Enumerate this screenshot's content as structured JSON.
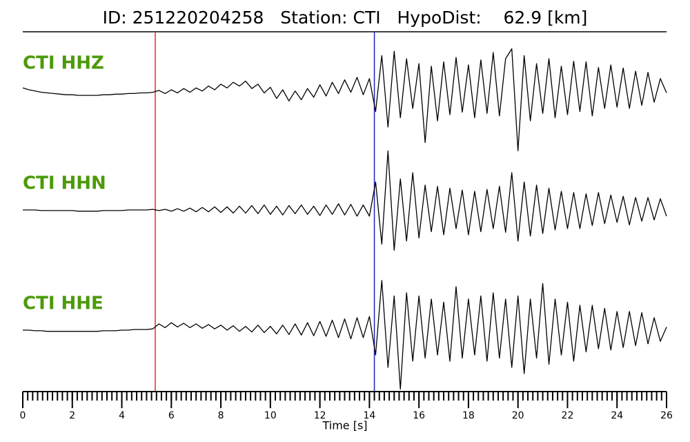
{
  "chart_data": {
    "type": "waveform",
    "title": "ID: 251220204258   Station: CTI   HypoDist:    62.9 [km]",
    "x_label": "Time [s]",
    "xlim": [
      0,
      26
    ],
    "xticks": [
      0,
      2,
      4,
      6,
      8,
      10,
      12,
      14,
      16,
      18,
      20,
      22,
      24,
      26
    ],
    "minor_tick_step": 0.2,
    "ylim": [
      -1,
      1
    ],
    "label_color": "#4c9a0a",
    "picks": [
      {
        "x": 5.35,
        "color": "#e8262a"
      },
      {
        "x": 14.2,
        "color": "#2020c0"
      }
    ],
    "x": [
      0,
      0.25,
      0.5,
      0.75,
      1,
      1.25,
      1.5,
      1.75,
      2,
      2.25,
      2.5,
      2.75,
      3,
      3.25,
      3.5,
      3.75,
      4,
      4.25,
      4.5,
      4.75,
      5,
      5.25,
      5.5,
      5.75,
      6,
      6.25,
      6.5,
      6.75,
      7,
      7.25,
      7.5,
      7.75,
      8,
      8.25,
      8.5,
      8.75,
      9,
      9.25,
      9.5,
      9.75,
      10,
      10.25,
      10.5,
      10.75,
      11,
      11.25,
      11.5,
      11.75,
      12,
      12.25,
      12.5,
      12.75,
      13,
      13.25,
      13.5,
      13.75,
      14,
      14.25,
      14.5,
      14.75,
      15,
      15.25,
      15.5,
      15.75,
      16,
      16.25,
      16.5,
      16.75,
      17,
      17.25,
      17.5,
      17.75,
      18,
      18.25,
      18.5,
      18.75,
      19,
      19.25,
      19.5,
      19.75,
      20,
      20.25,
      20.5,
      20.75,
      21,
      21.25,
      21.5,
      21.75,
      22,
      22.25,
      22.5,
      22.75,
      23,
      23.25,
      23.5,
      23.75,
      24,
      24.25,
      24.5,
      24.75,
      25,
      25.25,
      25.5,
      25.75,
      26
    ],
    "series": [
      {
        "name": "CTI HHZ",
        "color": "#000000",
        "values": [
          0.03,
          0.0,
          -0.02,
          -0.04,
          -0.05,
          -0.06,
          -0.07,
          -0.08,
          -0.08,
          -0.09,
          -0.09,
          -0.09,
          -0.09,
          -0.08,
          -0.08,
          -0.07,
          -0.07,
          -0.06,
          -0.06,
          -0.05,
          -0.05,
          -0.04,
          -0.01,
          -0.06,
          0.0,
          -0.05,
          0.02,
          -0.04,
          0.03,
          -0.02,
          0.06,
          0.0,
          0.09,
          0.03,
          0.12,
          0.06,
          0.14,
          0.02,
          0.09,
          -0.05,
          0.04,
          -0.14,
          0.0,
          -0.18,
          -0.02,
          -0.16,
          0.02,
          -0.12,
          0.08,
          -0.1,
          0.12,
          -0.06,
          0.16,
          -0.04,
          0.2,
          -0.08,
          0.18,
          -0.35,
          0.55,
          -0.6,
          0.62,
          -0.45,
          0.5,
          -0.3,
          0.42,
          -0.85,
          0.38,
          -0.5,
          0.45,
          -0.4,
          0.52,
          -0.36,
          0.4,
          -0.45,
          0.48,
          -0.38,
          0.6,
          -0.42,
          0.5,
          0.66,
          -0.98,
          0.55,
          -0.5,
          0.42,
          -0.38,
          0.5,
          -0.45,
          0.38,
          -0.4,
          0.46,
          -0.35,
          0.45,
          -0.42,
          0.36,
          -0.3,
          0.4,
          -0.28,
          0.35,
          -0.3,
          0.3,
          -0.25,
          0.28,
          -0.2,
          0.18,
          -0.05
        ]
      },
      {
        "name": "CTI HHN",
        "color": "#000000",
        "values": [
          0.0,
          0.0,
          0.0,
          -0.01,
          -0.01,
          -0.01,
          -0.01,
          -0.01,
          -0.01,
          -0.02,
          -0.02,
          -0.02,
          -0.02,
          -0.01,
          -0.01,
          -0.01,
          -0.01,
          0.0,
          0.0,
          0.0,
          0.0,
          0.01,
          -0.01,
          0.01,
          -0.02,
          0.02,
          -0.02,
          0.03,
          -0.03,
          0.04,
          -0.03,
          0.05,
          -0.04,
          0.05,
          -0.05,
          0.06,
          -0.05,
          0.07,
          -0.06,
          0.08,
          -0.07,
          0.06,
          -0.08,
          0.07,
          -0.06,
          0.08,
          -0.07,
          0.06,
          -0.09,
          0.08,
          -0.07,
          0.1,
          -0.08,
          0.09,
          -0.1,
          0.08,
          -0.1,
          0.45,
          -0.55,
          0.95,
          -0.65,
          0.5,
          -0.5,
          0.6,
          -0.45,
          0.4,
          -0.35,
          0.38,
          -0.4,
          0.35,
          -0.3,
          0.32,
          -0.4,
          0.3,
          -0.35,
          0.33,
          -0.3,
          0.38,
          -0.36,
          0.6,
          -0.5,
          0.45,
          -0.42,
          0.4,
          -0.38,
          0.35,
          -0.32,
          0.3,
          -0.3,
          0.28,
          -0.3,
          0.26,
          -0.25,
          0.28,
          -0.22,
          0.24,
          -0.2,
          0.22,
          -0.24,
          0.2,
          -0.18,
          0.2,
          -0.16,
          0.18,
          -0.1
        ]
      },
      {
        "name": "CTI HHE",
        "color": "#000000",
        "values": [
          0.0,
          0.0,
          -0.01,
          -0.01,
          -0.02,
          -0.02,
          -0.02,
          -0.02,
          -0.02,
          -0.02,
          -0.02,
          -0.02,
          -0.02,
          -0.01,
          -0.01,
          -0.01,
          0.0,
          0.0,
          0.01,
          0.01,
          0.01,
          0.02,
          0.1,
          0.04,
          0.12,
          0.05,
          0.11,
          0.04,
          0.1,
          0.03,
          0.09,
          0.02,
          0.08,
          0.0,
          0.07,
          -0.02,
          0.06,
          -0.03,
          0.08,
          -0.04,
          0.06,
          -0.06,
          0.08,
          -0.07,
          0.1,
          -0.08,
          0.12,
          -0.09,
          0.14,
          -0.1,
          0.16,
          -0.12,
          0.18,
          -0.14,
          0.2,
          -0.12,
          0.22,
          -0.4,
          0.8,
          -0.6,
          0.55,
          -0.95,
          0.6,
          -0.5,
          0.55,
          -0.45,
          0.5,
          -0.4,
          0.45,
          -0.5,
          0.7,
          -0.45,
          0.5,
          -0.4,
          0.55,
          -0.5,
          0.6,
          -0.45,
          0.5,
          -0.6,
          0.55,
          -0.7,
          0.5,
          -0.45,
          0.75,
          -0.55,
          0.5,
          -0.4,
          0.45,
          -0.5,
          0.4,
          -0.35,
          0.4,
          -0.3,
          0.35,
          -0.32,
          0.3,
          -0.28,
          0.3,
          -0.25,
          0.28,
          -0.22,
          0.2,
          -0.18,
          0.05
        ]
      }
    ]
  }
}
